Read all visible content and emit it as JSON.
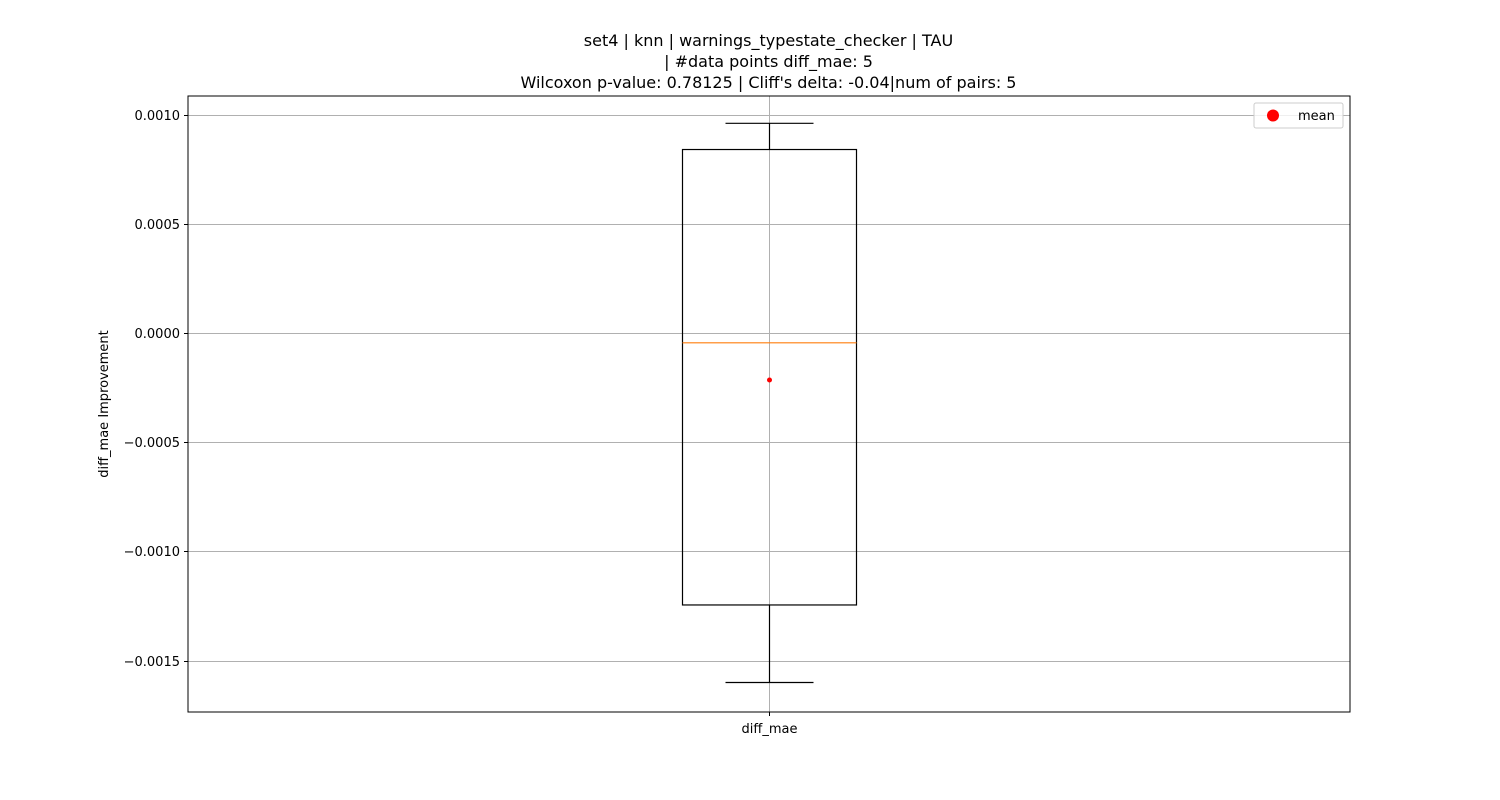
{
  "chart_data": {
    "type": "boxplot",
    "title_lines": [
      "set4 | knn | warnings_typestate_checker | TAU",
      "| #data points diff_mae: 5",
      "Wilcoxon p-value: 0.78125 | Cliff's delta: -0.04|num of pairs: 5"
    ],
    "xlabel": "",
    "ylabel": "diff_mae Improvement",
    "categories": [
      "diff_mae"
    ],
    "boxes": [
      {
        "name": "diff_mae",
        "whisker_low": -0.0016,
        "q1": -0.001245,
        "median": -4.5e-05,
        "q3": 0.00084,
        "whisker_high": 0.00096,
        "mean": -0.000215
      }
    ],
    "ylim": [
      -0.001735,
      0.001085
    ],
    "yticks": [
      -0.0015,
      -0.001,
      -0.0005,
      0.0,
      0.0005,
      0.001
    ],
    "ytick_labels": [
      "−0.0015",
      "−0.0010",
      "−0.0005",
      "0.0000",
      "0.0005",
      "0.0010"
    ],
    "grid": true,
    "legend": {
      "entries": [
        "mean"
      ],
      "placement": "top-right"
    },
    "colors": {
      "box": "#000000",
      "median": "#ff7f0e",
      "mean": "#ff0000",
      "grid": "#b0b0b0"
    }
  }
}
